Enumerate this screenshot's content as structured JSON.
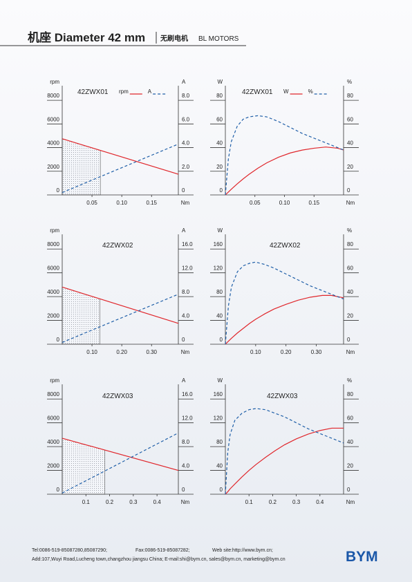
{
  "header": {
    "title": "机座 Diameter 42 mm",
    "subtitle_cn": "无刷电机",
    "subtitle_en": "BL MOTORS"
  },
  "chart_data": [
    {
      "type": "line",
      "title": "42ZWX01",
      "ylabel": "rpm",
      "y2label": "A",
      "xlabel": "Nm",
      "x": [
        0,
        0.195
      ],
      "xlim": [
        0,
        0.195
      ],
      "xticks": [
        0.05,
        {
          "value": 0.1,
          "label": "0.10"
        },
        0.15
      ],
      "ylim": [
        0,
        9000
      ],
      "yticks": [
        0,
        2000,
        4000,
        6000,
        8000
      ],
      "y2lim": [
        0,
        9
      ],
      "y2ticks": [
        0,
        {
          "value": 2,
          "label": "2.0"
        },
        {
          "value": 4,
          "label": "4.0"
        },
        {
          "value": 6,
          "label": "6.0"
        },
        {
          "value": 8,
          "label": "8.0"
        }
      ],
      "shaded_xlim": [
        0,
        0.064
      ],
      "series": [
        {
          "name": "rpm",
          "color": "#e0262b",
          "style": "solid",
          "values": [
            4750,
            1750
          ]
        },
        {
          "name": "A",
          "color": "#1f5fa8",
          "style": "dashed",
          "axis": "y2",
          "values": [
            0.2,
            4.3
          ]
        }
      ]
    },
    {
      "type": "line",
      "title": "42ZWX01",
      "ylabel": "W",
      "y2label": "%",
      "xlabel": "Nm",
      "x": [
        0,
        0.005,
        0.01,
        0.02,
        0.03,
        0.04,
        0.055,
        0.07,
        0.09,
        0.11,
        0.13,
        0.15,
        0.17,
        0.19,
        0.2
      ],
      "xlim": [
        0,
        0.2
      ],
      "xticks": [
        0.05,
        {
          "value": 0.1,
          "label": "0.10"
        },
        0.15
      ],
      "ylim": [
        0,
        90
      ],
      "yticks": [
        0,
        20,
        40,
        60,
        80
      ],
      "y2lim": [
        0,
        90
      ],
      "y2ticks": [
        0,
        20,
        40,
        60,
        80
      ],
      "series": [
        {
          "name": "W",
          "color": "#e0262b",
          "style": "solid",
          "values": [
            0,
            2.4,
            4.8,
            9.3,
            13.5,
            17.4,
            22.6,
            27.1,
            31.9,
            35.5,
            37.9,
            39.5,
            40.5,
            39.5,
            38
          ]
        },
        {
          "name": "%",
          "color": "#1f5fa8",
          "style": "dashed",
          "axis": "y2",
          "values": [
            0,
            30,
            45,
            58,
            64,
            66,
            67,
            66,
            62,
            57,
            52,
            48,
            44,
            40,
            38
          ]
        }
      ]
    },
    {
      "type": "line",
      "title": "42ZWX02",
      "ylabel": "rpm",
      "y2label": "A",
      "xlabel": "Nm",
      "x": [
        0,
        0.39
      ],
      "xlim": [
        0,
        0.39
      ],
      "xticks": [
        {
          "value": 0.1,
          "label": "0.10"
        },
        {
          "value": 0.2,
          "label": "0.20"
        },
        {
          "value": 0.3,
          "label": "0.30"
        }
      ],
      "ylim": [
        0,
        9000
      ],
      "yticks": [
        0,
        2000,
        4000,
        6000,
        8000
      ],
      "y2lim": [
        0,
        18
      ],
      "y2ticks": [
        0,
        {
          "value": 4,
          "label": "4.0"
        },
        {
          "value": 8,
          "label": "8.0"
        },
        {
          "value": 12,
          "label": "12.0"
        },
        {
          "value": 16,
          "label": "16.0"
        }
      ],
      "shaded_xlim": [
        0,
        0.126
      ],
      "series": [
        {
          "color": "#e0262b",
          "style": "solid",
          "values": [
            4800,
            1750
          ]
        },
        {
          "color": "#1f5fa8",
          "style": "dashed",
          "axis": "y2",
          "values": [
            0.3,
            8.4
          ]
        }
      ]
    },
    {
      "type": "line",
      "title": "42ZWX02",
      "ylabel": "W",
      "y2label": "%",
      "xlabel": "Nm",
      "x": [
        0,
        0.01,
        0.02,
        0.04,
        0.06,
        0.08,
        0.1,
        0.13,
        0.16,
        0.2,
        0.24,
        0.28,
        0.32,
        0.35,
        0.39
      ],
      "xlim": [
        0,
        0.39
      ],
      "xticks": [
        {
          "value": 0.1,
          "label": "0.10"
        },
        {
          "value": 0.2,
          "label": "0.20"
        },
        {
          "value": 0.3,
          "label": "0.30"
        }
      ],
      "ylim": [
        0,
        180
      ],
      "yticks": [
        0,
        40,
        80,
        120,
        160
      ],
      "y2lim": [
        0,
        90
      ],
      "y2ticks": [
        0,
        20,
        40,
        60,
        80
      ],
      "series": [
        {
          "color": "#e0262b",
          "style": "solid",
          "values": [
            0,
            5,
            10,
            19,
            27,
            35,
            42,
            51,
            59,
            67,
            74,
            79,
            82,
            82,
            78
          ]
        },
        {
          "color": "#1f5fa8",
          "style": "dashed",
          "axis": "y2",
          "values": [
            0,
            32,
            48,
            61,
            66,
            68,
            69,
            67,
            64,
            59,
            54,
            49,
            45,
            42,
            38
          ]
        }
      ]
    },
    {
      "type": "line",
      "title": "42ZWX03",
      "ylabel": "rpm",
      "y2label": "A",
      "xlabel": "Nm",
      "x": [
        0,
        0.49
      ],
      "xlim": [
        0,
        0.49
      ],
      "xticks": [
        0.1,
        0.2,
        0.3,
        0.4
      ],
      "ylim": [
        0,
        9000
      ],
      "yticks": [
        0,
        2000,
        4000,
        6000,
        8000
      ],
      "y2lim": [
        0,
        18
      ],
      "y2ticks": [
        0,
        {
          "value": 4,
          "label": "4.0"
        },
        {
          "value": 8,
          "label": "8.0"
        },
        {
          "value": 12,
          "label": "12.0"
        },
        {
          "value": 16,
          "label": "16.0"
        }
      ],
      "shaded_xlim": [
        0,
        0.18
      ],
      "series": [
        {
          "color": "#e0262b",
          "style": "solid",
          "values": [
            4700,
            2000
          ]
        },
        {
          "color": "#1f5fa8",
          "style": "dashed",
          "axis": "y2",
          "values": [
            0.2,
            10.3
          ]
        }
      ]
    },
    {
      "type": "line",
      "title": "42ZWX03",
      "ylabel": "W",
      "y2label": "%",
      "xlabel": "Nm",
      "x": [
        0,
        0.01,
        0.02,
        0.04,
        0.07,
        0.1,
        0.13,
        0.17,
        0.21,
        0.25,
        0.3,
        0.35,
        0.4,
        0.45,
        0.5
      ],
      "xlim": [
        0,
        0.5
      ],
      "xticks": [
        0.1,
        0.2,
        0.3,
        0.4
      ],
      "ylim": [
        0,
        180
      ],
      "yticks": [
        0,
        40,
        80,
        120,
        160
      ],
      "y2lim": [
        0,
        90
      ],
      "y2ticks": [
        0,
        20,
        40,
        60,
        80
      ],
      "series": [
        {
          "color": "#e0262b",
          "style": "solid",
          "values": [
            0,
            4,
            9,
            17,
            29,
            40,
            50,
            62,
            73,
            83,
            93,
            101,
            107,
            111,
            111
          ]
        },
        {
          "color": "#1f5fa8",
          "style": "dashed",
          "axis": "y2",
          "values": [
            0,
            35,
            50,
            62,
            68,
            71,
            72,
            71,
            68,
            65,
            60,
            55,
            51,
            47,
            43
          ]
        }
      ]
    }
  ],
  "footer": {
    "tel": "Tel:0086-519-85087280,85087290;",
    "fax": "Fax:0086-519-85087282;",
    "web": "Web site:http://www.bym.cn;",
    "address": "Add:107,Wuyi Road,Lucheng town,changzhou jiangsu China;  E-mail:shi@bym.cn, sales@bym.cn, marketing@bym.cn",
    "logo": "BYM"
  }
}
